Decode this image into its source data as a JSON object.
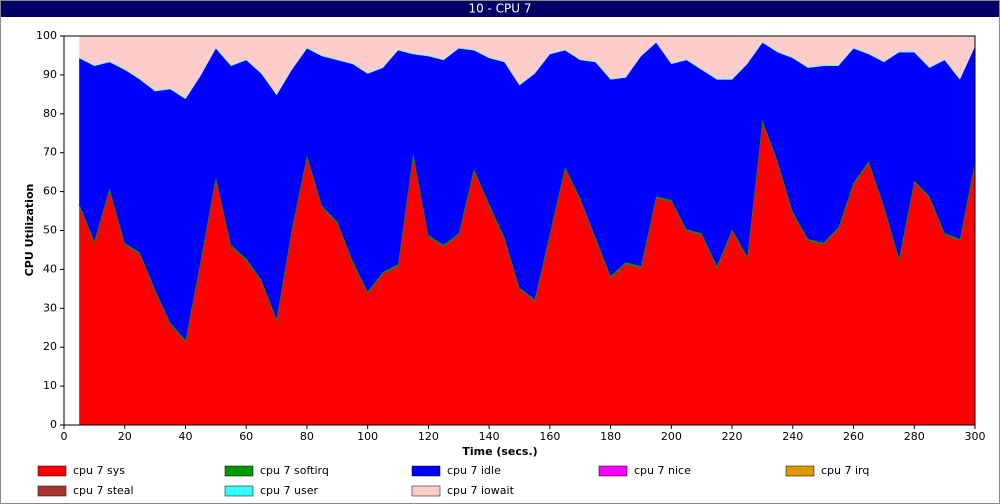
{
  "chart_data": {
    "type": "stacked-area",
    "title": "10 - CPU 7",
    "x_label": "Time (secs.)",
    "y_label": "CPU Utilization",
    "x": [
      5,
      10,
      15,
      20,
      25,
      30,
      35,
      40,
      45,
      50,
      55,
      60,
      65,
      70,
      75,
      80,
      85,
      90,
      95,
      100,
      105,
      110,
      115,
      120,
      125,
      130,
      135,
      140,
      145,
      150,
      155,
      160,
      165,
      170,
      175,
      180,
      185,
      190,
      195,
      200,
      205,
      210,
      215,
      220,
      225,
      230,
      235,
      240,
      245,
      250,
      255,
      260,
      265,
      270,
      275,
      280,
      285,
      290,
      295,
      300
    ],
    "xlim": [
      0,
      300
    ],
    "xticks": [
      0,
      20,
      40,
      60,
      80,
      100,
      120,
      140,
      160,
      180,
      200,
      220,
      240,
      260,
      280,
      300
    ],
    "ylim": [
      0,
      100
    ],
    "yticks": [
      0,
      10,
      20,
      30,
      40,
      50,
      60,
      70,
      80,
      90,
      100
    ],
    "series": [
      {
        "name": "cpu 7 sys",
        "color": "#ff0000",
        "values": [
          56.5,
          47,
          60.5,
          46.5,
          44,
          34.5,
          26,
          21.5,
          42,
          63.5,
          46,
          42.5,
          37,
          27,
          50,
          69,
          56,
          52,
          42,
          34,
          39,
          41,
          69.5,
          48.5,
          46,
          49,
          65.5,
          56.5,
          48,
          35,
          32,
          49,
          66,
          58,
          48,
          38,
          41.5,
          40.5,
          58.5,
          57.5,
          50,
          49,
          40.5,
          50,
          43,
          78,
          67.5,
          54.5,
          47.5,
          46.5,
          50.5,
          62,
          67.5,
          56,
          42.5,
          62.5,
          58.5,
          49,
          47.5,
          67.5
        ]
      },
      {
        "name": "cpu 7 softirq",
        "color": "#009900",
        "values": [
          0.3,
          0.3,
          0.3,
          0.3,
          0.3,
          0.3,
          0.3,
          0.3,
          0.3,
          0.3,
          0.3,
          0.3,
          0.3,
          0.3,
          0.3,
          0.3,
          0.3,
          0.3,
          0.3,
          0.3,
          0.3,
          0.3,
          0.3,
          0.3,
          0.3,
          0.3,
          0.3,
          0.3,
          0.3,
          0.3,
          0.3,
          0.3,
          0.3,
          0.3,
          0.3,
          0.3,
          0.3,
          0.3,
          0.3,
          0.3,
          0.3,
          0.3,
          0.3,
          0.3,
          0.3,
          0.3,
          0.3,
          0.3,
          0.3,
          0.3,
          0.3,
          0.3,
          0.3,
          0.3,
          0.3,
          0.3,
          0.3,
          0.3,
          0.3,
          0.3
        ]
      },
      {
        "name": "cpu 7 idle",
        "color": "#0000ff",
        "values": [
          37.5,
          45,
          32.5,
          44.5,
          44.5,
          51,
          60,
          62,
          47.5,
          33,
          46,
          51,
          53,
          57.5,
          41,
          27.5,
          38.5,
          41.5,
          50.5,
          56,
          52.5,
          55,
          25.5,
          46,
          47.5,
          47.5,
          30.5,
          37.5,
          45,
          52,
          58,
          46,
          30,
          35.5,
          45,
          50.5,
          47.5,
          54,
          39.5,
          35,
          43.5,
          42,
          48,
          38.5,
          49.5,
          20,
          28,
          39.5,
          44,
          45.5,
          41.5,
          34.5,
          27.5,
          37,
          53,
          33,
          33,
          44.5,
          41,
          29.5
        ]
      },
      {
        "name": "cpu 7 nice",
        "color": "#ff00ff",
        "values": [
          0,
          0,
          0,
          0,
          0,
          0,
          0,
          0,
          0,
          0,
          0,
          0,
          0,
          0,
          0,
          0,
          0,
          0,
          0,
          0,
          0,
          0,
          0,
          0,
          0,
          0,
          0,
          0,
          0,
          0,
          0,
          0,
          0,
          0,
          0,
          0,
          0,
          0,
          0,
          0,
          0,
          0,
          0,
          0,
          0,
          0,
          0,
          0,
          0,
          0,
          0,
          0,
          0,
          0,
          0,
          0,
          0,
          0,
          0,
          0
        ]
      },
      {
        "name": "cpu 7 irq",
        "color": "#dd9900",
        "values": [
          0,
          0,
          0,
          0,
          0,
          0,
          0,
          0,
          0,
          0,
          0,
          0,
          0,
          0,
          0,
          0,
          0,
          0,
          0,
          0,
          0,
          0,
          0,
          0,
          0,
          0,
          0,
          0,
          0,
          0,
          0,
          0,
          0,
          0,
          0,
          0,
          0,
          0,
          0,
          0,
          0,
          0,
          0,
          0,
          0,
          0,
          0,
          0,
          0,
          0,
          0,
          0,
          0,
          0,
          0,
          0,
          0,
          0,
          0,
          0
        ]
      },
      {
        "name": "cpu 7 steal",
        "color": "#aa3333",
        "values": [
          0,
          0,
          0,
          0,
          0,
          0,
          0,
          0,
          0,
          0,
          0,
          0,
          0,
          0,
          0,
          0,
          0,
          0,
          0,
          0,
          0,
          0,
          0,
          0,
          0,
          0,
          0,
          0,
          0,
          0,
          0,
          0,
          0,
          0,
          0,
          0,
          0,
          0,
          0,
          0,
          0,
          0,
          0,
          0,
          0,
          0,
          0,
          0,
          0,
          0,
          0,
          0,
          0,
          0,
          0,
          0,
          0,
          0,
          0,
          0
        ]
      },
      {
        "name": "cpu 7 user",
        "color": "#33ffff",
        "values": [
          0.2,
          0.2,
          0.2,
          0.2,
          0.2,
          0.2,
          0.2,
          0.2,
          0.2,
          0.2,
          0.2,
          0.2,
          0.2,
          0.2,
          0.2,
          0.2,
          0.2,
          0.2,
          0.2,
          0.2,
          0.2,
          0.2,
          0.2,
          0.2,
          0.2,
          0.2,
          0.2,
          0.2,
          0.2,
          0.2,
          0.2,
          0.2,
          0.2,
          0.2,
          0.2,
          0.2,
          0.2,
          0.2,
          0.2,
          0.2,
          0.2,
          0.2,
          0.2,
          0.2,
          0.2,
          0.2,
          0.2,
          0.2,
          0.2,
          0.2,
          0.2,
          0.2,
          0.2,
          0.2,
          0.2,
          0.2,
          0.2,
          0.2,
          0.2,
          0.2
        ]
      },
      {
        "name": "cpu 7 iowait",
        "color": "#ffcccc",
        "values": [
          5.5,
          7.5,
          6.5,
          8.5,
          11,
          14,
          13.5,
          16,
          10,
          3,
          7.5,
          6,
          9.5,
          15,
          8.5,
          3,
          5,
          6,
          7,
          9.5,
          8,
          3.5,
          4.5,
          5,
          6,
          3,
          3.5,
          5.5,
          6.5,
          12.5,
          9.5,
          4.5,
          3.5,
          6,
          6.5,
          11,
          10.5,
          5,
          1.5,
          7,
          6,
          8.5,
          11,
          11,
          7,
          1.5,
          4,
          5.5,
          8,
          7.5,
          7.5,
          3,
          4.5,
          6.5,
          4,
          4,
          8,
          6,
          11,
          2.5
        ]
      }
    ]
  }
}
